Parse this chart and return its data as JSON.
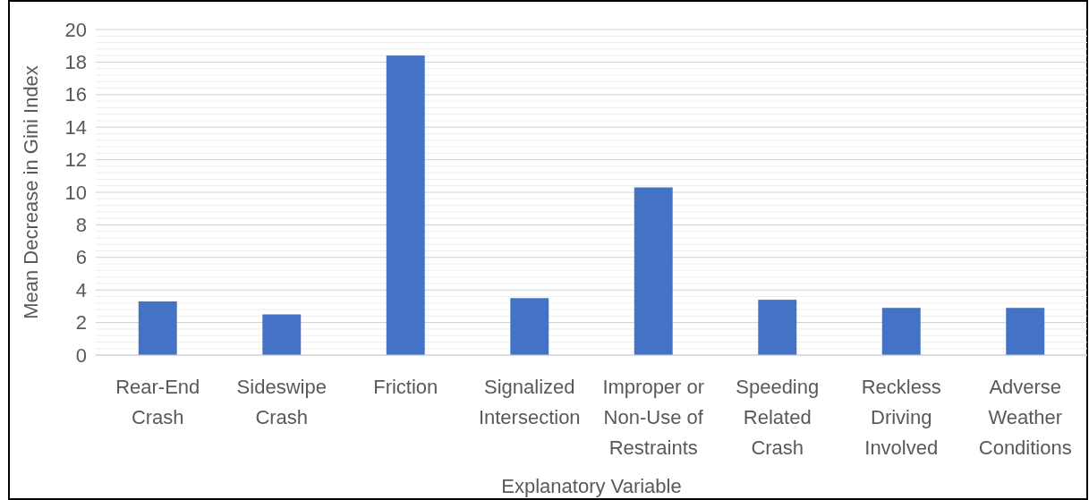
{
  "chart_data": {
    "type": "bar",
    "xlabel": "Explanatory Variable",
    "ylabel": "Mean Decrease in Gini Index",
    "categories": [
      "Rear-End Crash",
      "Sideswipe Crash",
      "Friction",
      "Signalized Intersection",
      "Improper or Non-Use of Restraints",
      "Speeding Related Crash",
      "Reckless Driving Involved",
      "Adverse Weather Conditions"
    ],
    "values": [
      3.3,
      2.5,
      18.4,
      3.5,
      10.3,
      3.4,
      2.9,
      2.9
    ],
    "color": "#4472c4",
    "ylim": [
      0,
      20
    ],
    "yticks": [
      0,
      {
        "value": 0.4,
        "label": null
      },
      {
        "value": 0.8,
        "label": null
      },
      {
        "value": 1.2,
        "label": null
      },
      {
        "value": 1.6,
        "label": null
      },
      2,
      {
        "value": 2.4,
        "label": null
      },
      {
        "value": 2.8,
        "label": null
      },
      {
        "value": 3.2,
        "label": null
      },
      {
        "value": 3.6,
        "label": null
      },
      4,
      {
        "value": 4.4,
        "label": null
      },
      {
        "value": 4.8,
        "label": null
      },
      {
        "value": 5.2,
        "label": null
      },
      {
        "value": 5.6,
        "label": null
      },
      6,
      {
        "value": 6.4,
        "label": null
      },
      {
        "value": 6.8,
        "label": null
      },
      {
        "value": 7.2,
        "label": null
      },
      {
        "value": 7.6,
        "label": null
      },
      8,
      {
        "value": 8.4,
        "label": null
      },
      {
        "value": 8.8,
        "label": null
      },
      {
        "value": 9.2,
        "label": null
      },
      {
        "value": 9.6,
        "label": null
      },
      10,
      {
        "value": 10.4,
        "label": null
      },
      {
        "value": 10.8,
        "label": null
      },
      {
        "value": 11.2,
        "label": null
      },
      {
        "value": 11.6,
        "label": null
      },
      12,
      {
        "value": 12.4,
        "label": null
      },
      {
        "value": 12.8,
        "label": null
      },
      {
        "value": 13.2,
        "label": null
      },
      {
        "value": 13.6,
        "label": null
      },
      14,
      {
        "value": 14.4,
        "label": null
      },
      {
        "value": 14.8,
        "label": null
      },
      {
        "value": 15.2,
        "label": null
      },
      {
        "value": 15.6,
        "label": null
      },
      16,
      {
        "value": 16.4,
        "label": null
      },
      {
        "value": 16.8,
        "label": null
      },
      {
        "value": 17.2,
        "label": null
      },
      {
        "value": 17.6,
        "label": null
      },
      18,
      {
        "value": 18.4,
        "label": null
      },
      {
        "value": 18.8,
        "label": null
      },
      {
        "value": 19.2,
        "label": null
      },
      {
        "value": 19.6,
        "label": null
      },
      20
    ],
    "grid": true
  }
}
